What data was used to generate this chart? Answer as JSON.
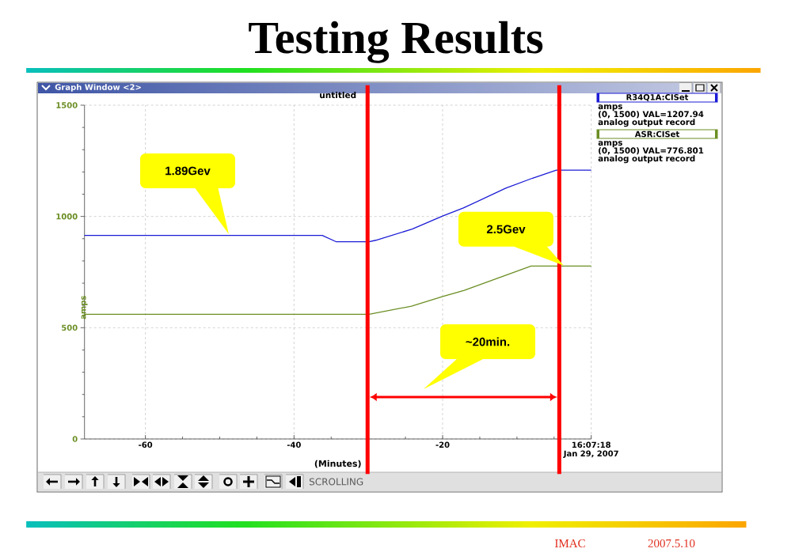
{
  "chart_data": {
    "type": "line",
    "title": "Testing Results",
    "subtitle": "untitled",
    "xlabel": "(Minutes)",
    "ylabel": "amps",
    "series": [
      {
        "name": "R34Q1A:CISet",
        "color": "#1c1cd6",
        "x": [
          -68.2,
          -36.2,
          -34.3,
          -29.9,
          -29.0,
          -24.1,
          -20,
          -17.2,
          -11.5,
          -7.9,
          -4.7,
          0
        ],
        "values": [
          915,
          915,
          886,
          886,
          893,
          943,
          1002,
          1038,
          1127,
          1172,
          1208,
          1208
        ]
      },
      {
        "name": "ASR:CISet",
        "color": "#6b8e23",
        "x": [
          -68.2,
          -29.9,
          -24.2,
          -20,
          -17.1,
          -11.1,
          -8.1,
          0
        ],
        "values": [
          560,
          560,
          597,
          640,
          668,
          741,
          777,
          777
        ]
      }
    ],
    "xlim": [
      -68.2,
      0
    ],
    "ylim": [
      0,
      1500
    ],
    "xticks": [
      -60,
      -40,
      -20,
      {
        "value": 0,
        "label": "16:07:18 Jan 29, 2007"
      }
    ],
    "yticks": [
      0,
      500,
      1000,
      1500
    ],
    "grid": true,
    "legend": "top right",
    "marker": "none",
    "line_style": "solid",
    "ref_lines": [
      {
        "axis": "x",
        "value": -30.1,
        "color": "#ff0000"
      },
      {
        "axis": "x",
        "value": -4.3,
        "color": "#ff0000"
      }
    ],
    "annotations": [
      "Graph Window <2>",
      "amps",
      "(0, 1500) VAL=1207.94",
      "analog output record",
      "amps",
      "(0, 1500) VAL=776.801",
      "analog output record",
      "SCROLLING",
      "IMAC",
      "2007.5.10",
      "1.89Gev",
      {
        "text": "2.5Gev",
        "x": -3.7,
        "y": 779
      },
      "~20min."
    ]
  }
}
